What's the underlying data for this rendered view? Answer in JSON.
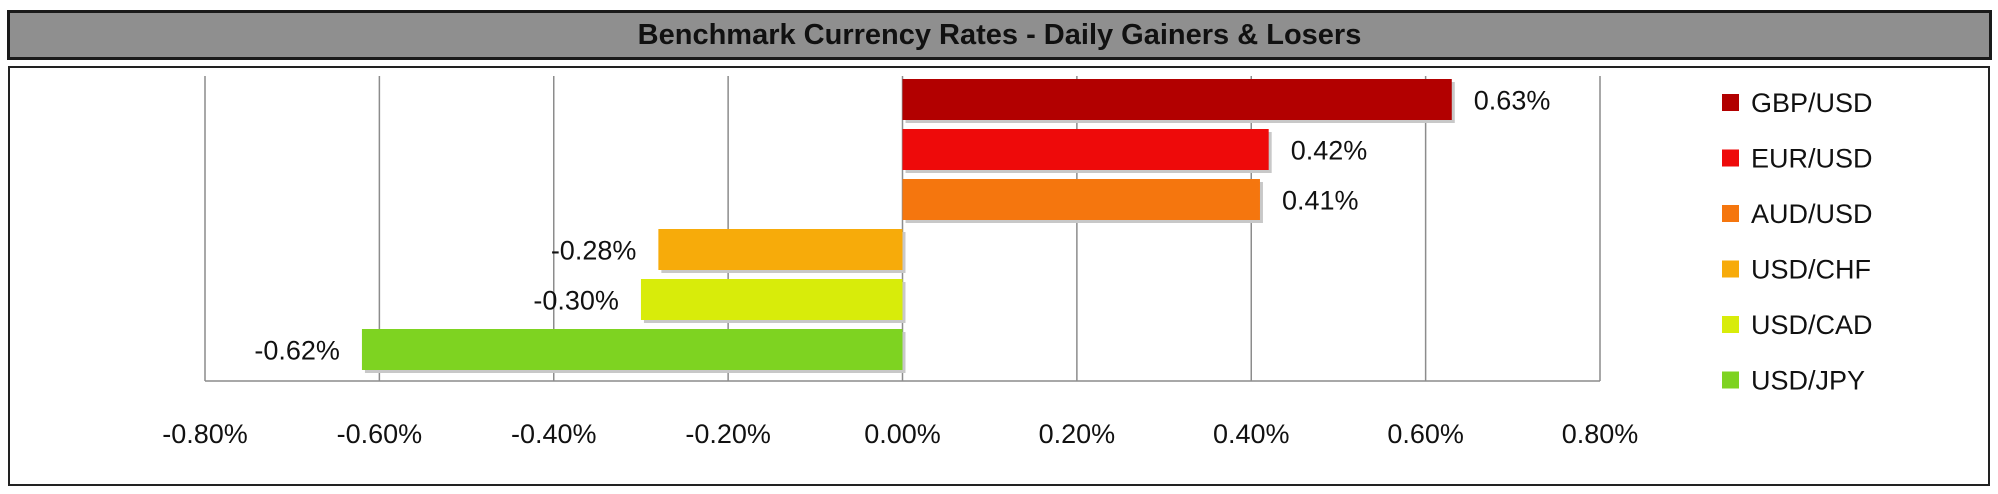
{
  "chart_data": {
    "type": "bar",
    "orientation": "horizontal",
    "title": "Benchmark Currency Rates - Daily Gainers & Losers",
    "categories": [
      "GBP/USD",
      "EUR/USD",
      "AUD/USD",
      "USD/CHF",
      "USD/CAD",
      "USD/JPY"
    ],
    "values": [
      0.63,
      0.42,
      0.41,
      -0.28,
      -0.3,
      -0.62
    ],
    "value_labels": [
      "0.63%",
      "0.42%",
      "0.41%",
      "-0.28%",
      "-0.30%",
      "-0.62%"
    ],
    "colors": [
      "#b20000",
      "#ee0a0a",
      "#f5760e",
      "#f7ab0a",
      "#d8ec0a",
      "#7ed321"
    ],
    "xlim": [
      -0.8,
      0.8
    ],
    "x_ticks": [
      -0.8,
      -0.6,
      -0.4,
      -0.2,
      0.0,
      0.2,
      0.4,
      0.6,
      0.8
    ],
    "x_tick_labels": [
      "-0.80%",
      "-0.60%",
      "-0.40%",
      "-0.20%",
      "0.00%",
      "0.20%",
      "0.40%",
      "0.60%",
      "0.80%"
    ],
    "grid": "vertical",
    "legend_position": "right",
    "xlabel": "",
    "ylabel": ""
  }
}
